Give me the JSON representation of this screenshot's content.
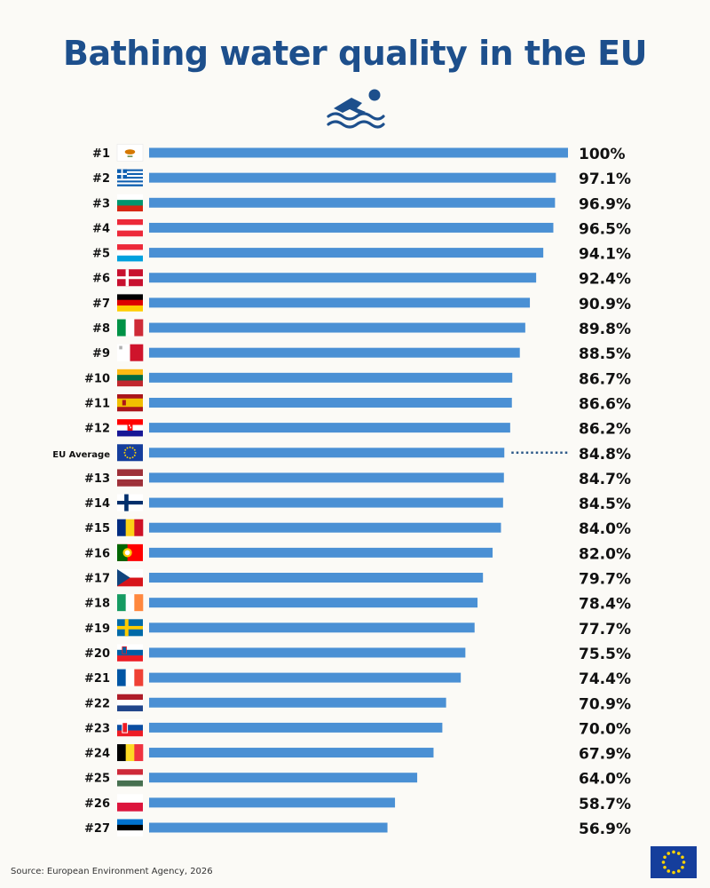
{
  "title": "Bathing water quality in the EU",
  "source": "Source: European Environment Agency, 2026",
  "colors": {
    "bar": "#4a90d4",
    "title": "#1d4f8c",
    "eu_blue": "#153e9c",
    "eu_star": "#ffd400"
  },
  "icons": {
    "header": "swimmer-icon",
    "corner": "eu-flag-icon"
  },
  "chart_data": {
    "type": "bar",
    "orientation": "horizontal",
    "unit": "%",
    "xlim": [
      0,
      100
    ],
    "grid": false,
    "legend": "none",
    "rows": [
      {
        "rank": "#1",
        "flag": "cyprus",
        "value": 100,
        "label": "100%"
      },
      {
        "rank": "#2",
        "flag": "greece",
        "value": 97.1,
        "label": "97.1%"
      },
      {
        "rank": "#3",
        "flag": "bulgaria",
        "value": 96.9,
        "label": "96.9%"
      },
      {
        "rank": "#4",
        "flag": "austria",
        "value": 96.5,
        "label": "96.5%"
      },
      {
        "rank": "#5",
        "flag": "luxembourg",
        "value": 94.1,
        "label": "94.1%"
      },
      {
        "rank": "#6",
        "flag": "denmark",
        "value": 92.4,
        "label": "92.4%"
      },
      {
        "rank": "#7",
        "flag": "germany",
        "value": 90.9,
        "label": "90.9%"
      },
      {
        "rank": "#8",
        "flag": "italy",
        "value": 89.8,
        "label": "89.8%"
      },
      {
        "rank": "#9",
        "flag": "malta",
        "value": 88.5,
        "label": "88.5%"
      },
      {
        "rank": "#10",
        "flag": "lithuania",
        "value": 86.7,
        "label": "86.7%"
      },
      {
        "rank": "#11",
        "flag": "spain",
        "value": 86.6,
        "label": "86.6%"
      },
      {
        "rank": "#12",
        "flag": "croatia",
        "value": 86.2,
        "label": "86.2%"
      },
      {
        "rank": "EU Average",
        "flag": "eu",
        "value": 84.8,
        "label": "84.8%",
        "average": true
      },
      {
        "rank": "#13",
        "flag": "latvia",
        "value": 84.7,
        "label": "84.7%"
      },
      {
        "rank": "#14",
        "flag": "finland",
        "value": 84.5,
        "label": "84.5%"
      },
      {
        "rank": "#15",
        "flag": "romania",
        "value": 84.0,
        "label": "84.0%"
      },
      {
        "rank": "#16",
        "flag": "portugal",
        "value": 82.0,
        "label": "82.0%"
      },
      {
        "rank": "#17",
        "flag": "czechia",
        "value": 79.7,
        "label": "79.7%"
      },
      {
        "rank": "#18",
        "flag": "ireland",
        "value": 78.4,
        "label": "78.4%"
      },
      {
        "rank": "#19",
        "flag": "sweden",
        "value": 77.7,
        "label": "77.7%"
      },
      {
        "rank": "#20",
        "flag": "slovenia",
        "value": 75.5,
        "label": "75.5%"
      },
      {
        "rank": "#21",
        "flag": "france",
        "value": 74.4,
        "label": "74.4%"
      },
      {
        "rank": "#22",
        "flag": "netherlands",
        "value": 70.9,
        "label": "70.9%"
      },
      {
        "rank": "#23",
        "flag": "slovakia",
        "value": 70.0,
        "label": "70.0%"
      },
      {
        "rank": "#24",
        "flag": "belgium",
        "value": 67.9,
        "label": "67.9%"
      },
      {
        "rank": "#25",
        "flag": "hungary",
        "value": 64.0,
        "label": "64.0%"
      },
      {
        "rank": "#26",
        "flag": "poland",
        "value": 58.7,
        "label": "58.7%"
      },
      {
        "rank": "#27",
        "flag": "estonia",
        "value": 56.9,
        "label": "56.9%"
      }
    ]
  }
}
